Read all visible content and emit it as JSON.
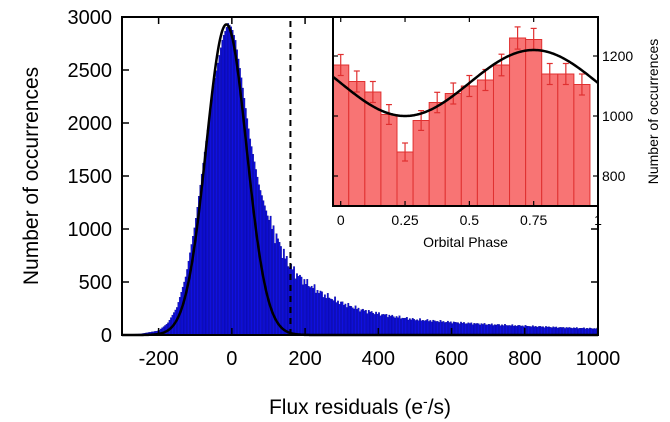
{
  "chart_data": [
    {
      "type": "bar",
      "subtype": "histogram",
      "xlabel_main": "Flux residuals (e",
      "xlabel_sup": "-",
      "xlabel_tail": "/s)",
      "ylabel": "Number of occurrences",
      "xlim": [
        -300,
        1000
      ],
      "ylim": [
        0,
        3000
      ],
      "xticks": [
        "-200",
        "0",
        "200",
        "400",
        "600",
        "800",
        "1000"
      ],
      "xtick_values": [
        -200,
        0,
        200,
        400,
        600,
        800,
        1000
      ],
      "yticks": [
        "0",
        "500",
        "1000",
        "1500",
        "2000",
        "2500",
        "3000"
      ],
      "ytick_values": [
        0,
        500,
        1000,
        1500,
        2000,
        2500,
        3000
      ],
      "bar_color": "#1010e0",
      "curve_color": "#000000",
      "histogram_profile": {
        "x": [
          -300,
          -250,
          -200,
          -175,
          -150,
          -125,
          -100,
          -75,
          -50,
          -25,
          -10,
          0,
          10,
          25,
          50,
          75,
          100,
          125,
          150,
          175,
          200,
          250,
          300,
          350,
          400,
          450,
          500,
          600,
          700,
          800,
          900,
          1000
        ],
        "y": [
          5,
          10,
          40,
          110,
          260,
          560,
          1050,
          1700,
          2350,
          2800,
          2940,
          2900,
          2780,
          2450,
          1850,
          1400,
          1100,
          900,
          700,
          580,
          500,
          380,
          300,
          240,
          200,
          170,
          145,
          120,
          100,
          85,
          70,
          60
        ]
      },
      "gaussian_fit": {
        "amplitude": 2930,
        "mean": -15,
        "sigma": 55
      },
      "threshold_line_x": 160,
      "threshold_style": "dashed"
    },
    {
      "type": "bar",
      "subtype": "inset-histogram",
      "xlabel": "Orbital Phase",
      "ylabel": "Number of occurrences",
      "xlim": [
        -0.03,
        1.0
      ],
      "ylim": [
        700,
        1330
      ],
      "xticks": [
        "0",
        "0.25",
        "0.5",
        "0.75",
        "1"
      ],
      "xtick_values": [
        0,
        0.25,
        0.5,
        0.75,
        1
      ],
      "yticks": [
        "800",
        "1000",
        "1200"
      ],
      "ytick_values": [
        800,
        1000,
        1200
      ],
      "bar_color": "#f87474",
      "edge_color": "#e03030",
      "bin_width": 0.0625,
      "x": [
        0,
        0.0625,
        0.125,
        0.1875,
        0.25,
        0.3125,
        0.375,
        0.4375,
        0.5,
        0.5625,
        0.625,
        0.6875,
        0.75,
        0.8125,
        0.875,
        0.9375
      ],
      "values": [
        1170,
        1115,
        1080,
        1005,
        880,
        985,
        1045,
        1075,
        1100,
        1120,
        1170,
        1260,
        1255,
        1140,
        1140,
        1105
      ],
      "errors": [
        35,
        35,
        35,
        33,
        30,
        33,
        34,
        35,
        35,
        35,
        36,
        37,
        37,
        35,
        35,
        35
      ],
      "sine_fit": {
        "mean": 1110,
        "amplitude": 110,
        "min_phase": 0.25
      }
    }
  ]
}
